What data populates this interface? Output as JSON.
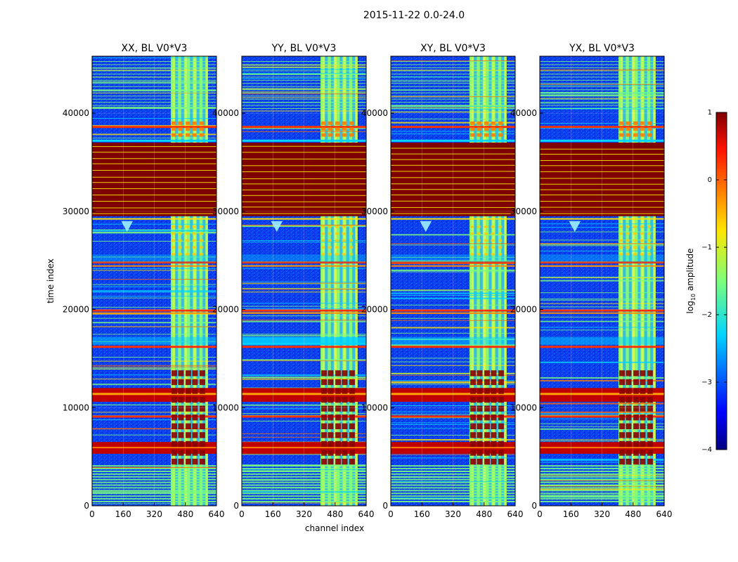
{
  "figure_title": "2015-11-22 0.0-24.0",
  "chart_data": {
    "type": "heatmap",
    "xlabel": "channel index",
    "ylabel": "time index",
    "xlim": [
      0,
      640
    ],
    "ylim": [
      0,
      45800
    ],
    "xticks": [
      "0",
      "160",
      "320",
      "480",
      "640"
    ],
    "yticks": [
      "0",
      "10000",
      "20000",
      "30000",
      "40000"
    ],
    "panels": [
      {
        "title": "XX, BL V0*V3",
        "pol": "XX"
      },
      {
        "title": "YY, BL V0*V3",
        "pol": "YY"
      },
      {
        "title": "XY, BL V0*V3",
        "pol": "XY"
      },
      {
        "title": "YX, BL V0*V3",
        "pol": "YX"
      }
    ],
    "colorbar": {
      "label": "log10 amplitude",
      "label_base": "log",
      "label_sub": "10",
      "label_rest": " amplitude",
      "range": [
        -4,
        1
      ],
      "ticks": [
        "1",
        "0",
        "−1",
        "−2",
        "−3",
        "−4"
      ],
      "colormap": "jet"
    },
    "rfi_channel_band": [
      405,
      595
    ],
    "saturated_time_block": [
      29500,
      37000
    ]
  }
}
